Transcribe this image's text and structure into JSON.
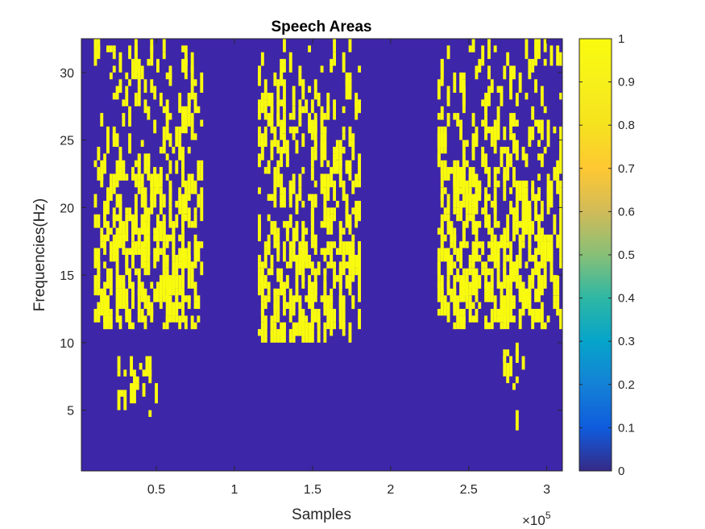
{
  "chart_data": {
    "type": "heatmap",
    "title": "Speech Areas",
    "xlabel": "Samples",
    "ylabel": "Frequencies(Hz)",
    "x_multiplier_label": {
      "base": "×10",
      "exponent": "5"
    },
    "xlim": [
      0.02,
      3.1
    ],
    "ylim": [
      0.5,
      32.5
    ],
    "x_ticks": [
      0.5,
      1,
      1.5,
      2,
      2.5,
      3
    ],
    "x_tick_labels": [
      "0.5",
      "1",
      "1.5",
      "2",
      "2.5",
      "3"
    ],
    "y_ticks": [
      5,
      10,
      15,
      20,
      25,
      30
    ],
    "y_tick_labels": [
      "5",
      "10",
      "15",
      "20",
      "25",
      "30"
    ],
    "colorbar": {
      "ticks": [
        0,
        0.1,
        0.2,
        0.3,
        0.4,
        0.5,
        0.6,
        0.7,
        0.8,
        0.9,
        1
      ],
      "tick_labels": [
        "0",
        "0.1",
        "0.2",
        "0.3",
        "0.4",
        "0.5",
        "0.6",
        "0.7",
        "0.8",
        "0.9",
        "1"
      ],
      "range": [
        0,
        1
      ],
      "colormap": "parula"
    },
    "low_color": "#3e26a8",
    "high_color": "#f9fb0e",
    "regions_description_value_1": [
      {
        "x_range": [
          0.1,
          0.8
        ],
        "frequency_range": [
          11,
          32
        ],
        "value": 1
      },
      {
        "x_range": [
          1.15,
          1.8
        ],
        "frequency_range": [
          10,
          32
        ],
        "value": 1
      },
      {
        "x_range": [
          2.3,
          3.1
        ],
        "frequency_range": [
          11,
          32
        ],
        "value": 1
      },
      {
        "x_range": [
          0.25,
          0.5
        ],
        "frequency_range": [
          4.5,
          8.5
        ],
        "value": 1
      },
      {
        "x_range": [
          2.7,
          2.85
        ],
        "frequency_range": [
          3.5,
          9.5
        ],
        "value": 1
      }
    ],
    "background_value": 0
  }
}
